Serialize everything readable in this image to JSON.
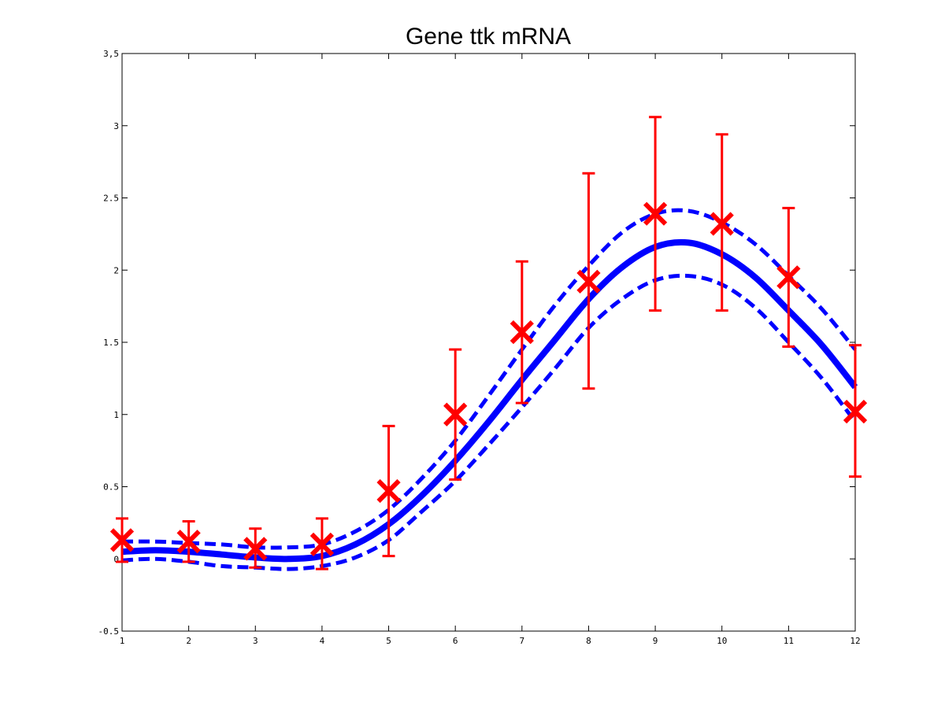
{
  "chart_data": {
    "type": "line",
    "title": "Gene ttk mRNA",
    "xlabel": "",
    "ylabel": "",
    "xlim": [
      1,
      12
    ],
    "ylim": [
      -0.5,
      3.5
    ],
    "x_ticks": [
      1,
      2,
      3,
      4,
      5,
      6,
      7,
      8,
      9,
      10,
      11,
      12
    ],
    "y_ticks": [
      -0.5,
      0,
      0.5,
      1,
      1.5,
      2,
      2.5,
      3,
      3.5
    ],
    "x_tick_labels": [
      "1",
      "2",
      "3",
      "4",
      "5",
      "6",
      "7",
      "8",
      "9",
      "10",
      "11",
      "12"
    ],
    "y_tick_labels": [
      "-0.5",
      "0",
      "0.5",
      "1",
      "1.5",
      "2",
      "2.5",
      "3",
      "3,5"
    ],
    "grid": false,
    "series": [
      {
        "kind": "mean",
        "style": "solid",
        "color": "#0000ff",
        "x": [
          1,
          1.5,
          2,
          2.5,
          3,
          3.5,
          4,
          4.5,
          5,
          5.5,
          6,
          6.5,
          7,
          7.5,
          8,
          8.5,
          9,
          9.5,
          10,
          10.5,
          11,
          11.5,
          12
        ],
        "y": [
          0.05,
          0.06,
          0.05,
          0.03,
          0.01,
          0.0,
          0.02,
          0.1,
          0.24,
          0.44,
          0.68,
          0.95,
          1.24,
          1.52,
          1.8,
          2.02,
          2.16,
          2.19,
          2.11,
          1.95,
          1.72,
          1.48,
          1.19
        ]
      },
      {
        "kind": "upper-bound",
        "style": "dashed",
        "color": "#0000ff",
        "x": [
          1,
          1.5,
          2,
          2.5,
          3,
          3.5,
          4,
          4.5,
          5,
          5.5,
          6,
          6.5,
          7,
          7.5,
          8,
          8.5,
          9,
          9.5,
          10,
          10.5,
          11,
          11.5,
          12
        ],
        "y": [
          0.12,
          0.12,
          0.11,
          0.1,
          0.08,
          0.08,
          0.1,
          0.19,
          0.34,
          0.56,
          0.82,
          1.13,
          1.45,
          1.76,
          2.03,
          2.26,
          2.39,
          2.41,
          2.33,
          2.18,
          1.96,
          1.73,
          1.45
        ]
      },
      {
        "kind": "lower-bound",
        "style": "dashed",
        "color": "#0000ff",
        "x": [
          1,
          1.5,
          2,
          2.5,
          3,
          3.5,
          4,
          4.5,
          5,
          5.5,
          6,
          6.5,
          7,
          7.5,
          8,
          8.5,
          9,
          9.5,
          10,
          10.5,
          11,
          11.5,
          12
        ],
        "y": [
          -0.01,
          0.0,
          -0.02,
          -0.05,
          -0.06,
          -0.07,
          -0.05,
          0.01,
          0.13,
          0.33,
          0.54,
          0.79,
          1.05,
          1.32,
          1.6,
          1.8,
          1.93,
          1.96,
          1.9,
          1.74,
          1.5,
          1.25,
          0.95
        ]
      }
    ],
    "observations": {
      "marker": "x",
      "color": "#ff0000",
      "x": [
        1,
        2,
        3,
        4,
        5,
        6,
        7,
        8,
        9,
        10,
        11,
        12
      ],
      "y": [
        0.13,
        0.12,
        0.07,
        0.1,
        0.47,
        1.0,
        1.57,
        1.92,
        2.39,
        2.32,
        1.95,
        1.02
      ],
      "err_low": [
        -0.02,
        -0.02,
        -0.06,
        -0.07,
        0.02,
        0.55,
        1.08,
        1.18,
        1.72,
        1.72,
        1.47,
        0.57
      ],
      "err_high": [
        0.28,
        0.26,
        0.21,
        0.28,
        0.92,
        1.45,
        2.06,
        2.67,
        3.06,
        2.94,
        2.43,
        1.48
      ]
    }
  }
}
